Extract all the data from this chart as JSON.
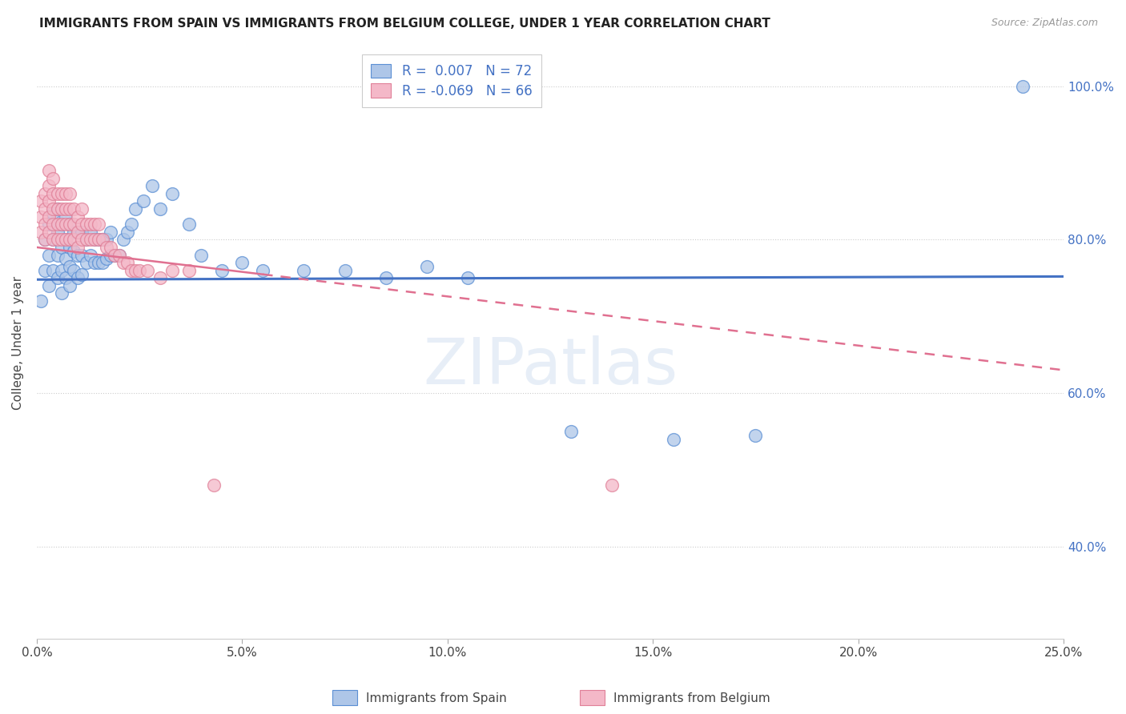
{
  "title": "IMMIGRANTS FROM SPAIN VS IMMIGRANTS FROM BELGIUM COLLEGE, UNDER 1 YEAR CORRELATION CHART",
  "source": "Source: ZipAtlas.com",
  "ylabel": "College, Under 1 year",
  "legend_labels": [
    "Immigrants from Spain",
    "Immigrants from Belgium"
  ],
  "r_spain": "0.007",
  "n_spain": "72",
  "r_belgium": "-0.069",
  "n_belgium": "66",
  "xlim": [
    0.0,
    0.25
  ],
  "ylim": [
    0.28,
    1.05
  ],
  "xticks": [
    0.0,
    0.05,
    0.1,
    0.15,
    0.2,
    0.25
  ],
  "yticks": [
    0.4,
    0.6,
    0.8,
    1.0
  ],
  "ytick_labels_right": [
    "40.0%",
    "60.0%",
    "80.0%",
    "100.0%"
  ],
  "xtick_labels": [
    "0.0%",
    "5.0%",
    "10.0%",
    "15.0%",
    "20.0%",
    "25.0%"
  ],
  "color_spain": "#aec6e8",
  "color_belgium": "#f4b8c8",
  "edge_color_spain": "#5b8fd4",
  "edge_color_belgium": "#e08098",
  "line_color_spain": "#4472C4",
  "line_color_belgium": "#e07090",
  "watermark": "ZIPatlas",
  "spain_x": [
    0.001,
    0.002,
    0.002,
    0.003,
    0.003,
    0.003,
    0.004,
    0.004,
    0.004,
    0.005,
    0.005,
    0.005,
    0.005,
    0.006,
    0.006,
    0.006,
    0.006,
    0.007,
    0.007,
    0.007,
    0.007,
    0.008,
    0.008,
    0.008,
    0.008,
    0.009,
    0.009,
    0.009,
    0.01,
    0.01,
    0.01,
    0.011,
    0.011,
    0.011,
    0.012,
    0.012,
    0.013,
    0.013,
    0.014,
    0.014,
    0.015,
    0.015,
    0.016,
    0.016,
    0.017,
    0.017,
    0.018,
    0.018,
    0.019,
    0.02,
    0.021,
    0.022,
    0.023,
    0.024,
    0.026,
    0.028,
    0.03,
    0.033,
    0.037,
    0.04,
    0.045,
    0.05,
    0.055,
    0.065,
    0.075,
    0.085,
    0.095,
    0.105,
    0.13,
    0.155,
    0.175,
    0.24
  ],
  "spain_y": [
    0.72,
    0.76,
    0.8,
    0.74,
    0.78,
    0.82,
    0.76,
    0.8,
    0.835,
    0.75,
    0.78,
    0.81,
    0.84,
    0.73,
    0.76,
    0.79,
    0.82,
    0.75,
    0.775,
    0.8,
    0.83,
    0.74,
    0.765,
    0.79,
    0.82,
    0.76,
    0.785,
    0.81,
    0.75,
    0.78,
    0.81,
    0.755,
    0.78,
    0.81,
    0.77,
    0.8,
    0.78,
    0.81,
    0.77,
    0.8,
    0.77,
    0.8,
    0.77,
    0.8,
    0.775,
    0.8,
    0.78,
    0.81,
    0.78,
    0.78,
    0.8,
    0.81,
    0.82,
    0.84,
    0.85,
    0.87,
    0.84,
    0.86,
    0.82,
    0.78,
    0.76,
    0.77,
    0.76,
    0.76,
    0.76,
    0.75,
    0.765,
    0.75,
    0.55,
    0.54,
    0.545,
    1.0
  ],
  "belgium_x": [
    0.001,
    0.001,
    0.001,
    0.002,
    0.002,
    0.002,
    0.002,
    0.003,
    0.003,
    0.003,
    0.003,
    0.003,
    0.004,
    0.004,
    0.004,
    0.004,
    0.004,
    0.005,
    0.005,
    0.005,
    0.005,
    0.006,
    0.006,
    0.006,
    0.006,
    0.007,
    0.007,
    0.007,
    0.007,
    0.008,
    0.008,
    0.008,
    0.008,
    0.009,
    0.009,
    0.009,
    0.01,
    0.01,
    0.01,
    0.011,
    0.011,
    0.011,
    0.012,
    0.012,
    0.013,
    0.013,
    0.014,
    0.014,
    0.015,
    0.015,
    0.016,
    0.017,
    0.018,
    0.019,
    0.02,
    0.021,
    0.022,
    0.023,
    0.024,
    0.025,
    0.027,
    0.03,
    0.033,
    0.037,
    0.043,
    0.14
  ],
  "belgium_y": [
    0.81,
    0.83,
    0.85,
    0.8,
    0.82,
    0.84,
    0.86,
    0.81,
    0.83,
    0.85,
    0.87,
    0.89,
    0.8,
    0.82,
    0.84,
    0.86,
    0.88,
    0.8,
    0.82,
    0.84,
    0.86,
    0.8,
    0.82,
    0.84,
    0.86,
    0.8,
    0.82,
    0.84,
    0.86,
    0.8,
    0.82,
    0.84,
    0.86,
    0.8,
    0.82,
    0.84,
    0.79,
    0.81,
    0.83,
    0.8,
    0.82,
    0.84,
    0.8,
    0.82,
    0.8,
    0.82,
    0.8,
    0.82,
    0.8,
    0.82,
    0.8,
    0.79,
    0.79,
    0.78,
    0.78,
    0.77,
    0.77,
    0.76,
    0.76,
    0.76,
    0.76,
    0.75,
    0.76,
    0.76,
    0.48,
    0.48
  ],
  "trendline_spain_x0": 0.0,
  "trendline_spain_y0": 0.748,
  "trendline_spain_x1": 0.25,
  "trendline_spain_y1": 0.752,
  "trendline_belgium_x0": 0.0,
  "trendline_belgium_y0": 0.79,
  "trendline_belgium_x1": 0.25,
  "trendline_belgium_y1": 0.63,
  "trendline_belgium_solid_end": 0.055
}
